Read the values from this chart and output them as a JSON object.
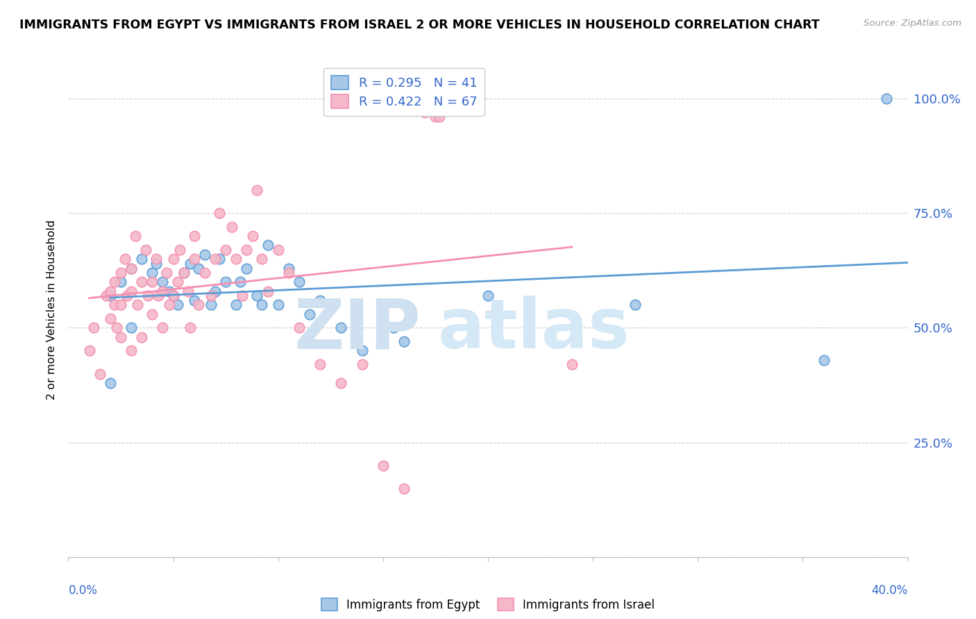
{
  "title": "IMMIGRANTS FROM EGYPT VS IMMIGRANTS FROM ISRAEL 2 OR MORE VEHICLES IN HOUSEHOLD CORRELATION CHART",
  "source": "Source: ZipAtlas.com",
  "ylabel": "2 or more Vehicles in Household",
  "ytick_labels": [
    "",
    "25.0%",
    "50.0%",
    "75.0%",
    "100.0%"
  ],
  "ytick_values": [
    0.0,
    0.25,
    0.5,
    0.75,
    1.0
  ],
  "xlim": [
    0.0,
    0.4
  ],
  "ylim": [
    0.0,
    1.08
  ],
  "color_egypt": "#a8c8e8",
  "color_israel": "#f4b8c8",
  "color_egypt_line": "#5b9bd5",
  "color_israel_line": "#f48fb1",
  "color_legend_text": "#3366cc",
  "egypt_x": [
    0.02,
    0.02,
    0.025,
    0.03,
    0.03,
    0.035,
    0.04,
    0.042,
    0.045,
    0.048,
    0.05,
    0.052,
    0.055,
    0.058,
    0.06,
    0.062,
    0.065,
    0.068,
    0.07,
    0.072,
    0.075,
    0.08,
    0.082,
    0.085,
    0.09,
    0.092,
    0.095,
    0.1,
    0.105,
    0.11,
    0.115,
    0.12,
    0.13,
    0.14,
    0.15,
    0.155,
    0.16,
    0.2,
    0.27,
    0.36,
    0.39
  ],
  "egypt_y": [
    0.38,
    0.57,
    0.6,
    0.63,
    0.5,
    0.65,
    0.62,
    0.64,
    0.6,
    0.58,
    0.57,
    0.55,
    0.62,
    0.64,
    0.56,
    0.63,
    0.66,
    0.55,
    0.58,
    0.65,
    0.6,
    0.55,
    0.6,
    0.63,
    0.57,
    0.55,
    0.68,
    0.55,
    0.63,
    0.6,
    0.53,
    0.56,
    0.5,
    0.45,
    0.55,
    0.5,
    0.47,
    0.57,
    0.55,
    0.43,
    1.0
  ],
  "israel_x": [
    0.01,
    0.012,
    0.015,
    0.018,
    0.02,
    0.02,
    0.022,
    0.022,
    0.023,
    0.025,
    0.025,
    0.025,
    0.027,
    0.028,
    0.03,
    0.03,
    0.03,
    0.032,
    0.033,
    0.035,
    0.035,
    0.037,
    0.038,
    0.04,
    0.04,
    0.042,
    0.043,
    0.045,
    0.045,
    0.047,
    0.048,
    0.05,
    0.05,
    0.052,
    0.053,
    0.055,
    0.057,
    0.058,
    0.06,
    0.06,
    0.062,
    0.065,
    0.068,
    0.07,
    0.072,
    0.075,
    0.078,
    0.08,
    0.083,
    0.085,
    0.088,
    0.09,
    0.092,
    0.095,
    0.1,
    0.105,
    0.11,
    0.12,
    0.13,
    0.14,
    0.15,
    0.16,
    0.17,
    0.175,
    0.176,
    0.177,
    0.24
  ],
  "israel_y": [
    0.45,
    0.5,
    0.4,
    0.57,
    0.52,
    0.58,
    0.6,
    0.55,
    0.5,
    0.55,
    0.62,
    0.48,
    0.65,
    0.57,
    0.58,
    0.63,
    0.45,
    0.7,
    0.55,
    0.6,
    0.48,
    0.67,
    0.57,
    0.6,
    0.53,
    0.65,
    0.57,
    0.58,
    0.5,
    0.62,
    0.55,
    0.57,
    0.65,
    0.6,
    0.67,
    0.62,
    0.58,
    0.5,
    0.65,
    0.7,
    0.55,
    0.62,
    0.57,
    0.65,
    0.75,
    0.67,
    0.72,
    0.65,
    0.57,
    0.67,
    0.7,
    0.8,
    0.65,
    0.58,
    0.67,
    0.62,
    0.5,
    0.42,
    0.38,
    0.42,
    0.2,
    0.15,
    0.97,
    0.96,
    0.97,
    0.96,
    0.42
  ],
  "watermark_zip_color": "#d0e4f5",
  "watermark_atlas_color": "#d8eaf8"
}
